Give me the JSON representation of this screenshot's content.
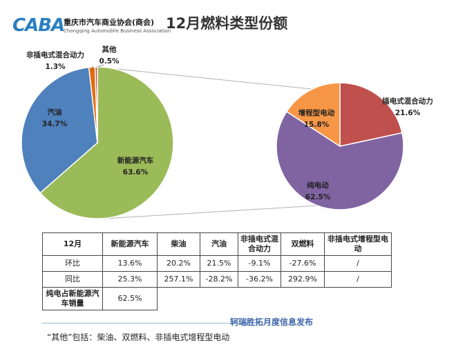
{
  "header": {
    "logo_mark": "CABA",
    "logo_name": "重庆市汽车商业协会(商会)",
    "logo_en": "Chongqing Automobile Business Association",
    "title": "12月燃料类型份额"
  },
  "colors": {
    "nev": "#9bbb59",
    "gasoline": "#4f81bd",
    "non_plugin_hybrid": "#e46c0a",
    "other": "#c0504d",
    "bev": "#8064a2",
    "erev": "#f79646",
    "phev": "#c0504d"
  },
  "chart_data": [
    {
      "type": "pie",
      "slices": [
        {
          "label": "新能源汽车",
          "value": 63.6,
          "value_label": "63.6%"
        },
        {
          "label": "汽油",
          "value": 34.7,
          "value_label": "34.7%"
        },
        {
          "label": "非插电式混合动力",
          "value": 1.3,
          "value_label": "1.3%"
        },
        {
          "label": "其他",
          "value": 0.5,
          "value_label": "0.5%"
        }
      ]
    },
    {
      "type": "pie",
      "slices": [
        {
          "label": "插电式混合动力",
          "value": 21.6,
          "value_label": "21.6%"
        },
        {
          "label": "纯电动",
          "value": 62.5,
          "value_label": "62.5%"
        },
        {
          "label": "增程型电动",
          "value": 15.8,
          "value_label": "15.8%"
        }
      ]
    }
  ],
  "table": {
    "headers": [
      "12月",
      "新能源汽车",
      "柴油",
      "汽油",
      "非插电式混合动力",
      "双燃料",
      "非插电式增程型电动"
    ],
    "rows": [
      {
        "label": "环比",
        "cells": [
          "13.6%",
          "20.2%",
          "21.5%",
          "-9.1%",
          "-27.6%",
          "/"
        ]
      },
      {
        "label": "同比",
        "cells": [
          "25.3%",
          "257.1%",
          "-28.2%",
          "-36.2%",
          "292.9%",
          "/"
        ]
      }
    ],
    "last_row": {
      "label": "纯电占新能源汽车销量",
      "value": "62.5%"
    }
  },
  "footer": {
    "publisher": "轲瑞胜拓月度信息发布",
    "note": "“其他”包括：柴油、双燃料、非插电式增程型电动"
  }
}
